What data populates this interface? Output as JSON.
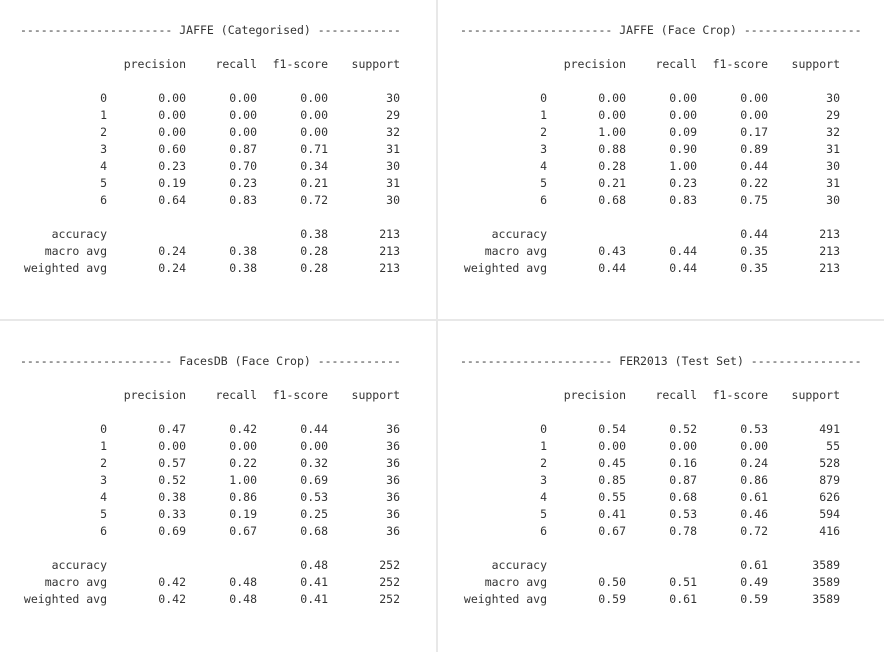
{
  "columns": [
    "precision",
    "recall",
    "f1-score",
    "support"
  ],
  "panels": [
    {
      "rule": "---------------------- JAFFE (Categorised) ------------",
      "rows": [
        {
          "label": "0",
          "precision": "0.00",
          "recall": "0.00",
          "f1": "0.00",
          "support": "30"
        },
        {
          "label": "1",
          "precision": "0.00",
          "recall": "0.00",
          "f1": "0.00",
          "support": "29"
        },
        {
          "label": "2",
          "precision": "0.00",
          "recall": "0.00",
          "f1": "0.00",
          "support": "32"
        },
        {
          "label": "3",
          "precision": "0.60",
          "recall": "0.87",
          "f1": "0.71",
          "support": "31"
        },
        {
          "label": "4",
          "precision": "0.23",
          "recall": "0.70",
          "f1": "0.34",
          "support": "30"
        },
        {
          "label": "5",
          "precision": "0.19",
          "recall": "0.23",
          "f1": "0.21",
          "support": "31"
        },
        {
          "label": "6",
          "precision": "0.64",
          "recall": "0.83",
          "f1": "0.72",
          "support": "30"
        }
      ],
      "accuracy": {
        "label": "accuracy",
        "f1": "0.38",
        "support": "213"
      },
      "macro": {
        "label": "macro avg",
        "precision": "0.24",
        "recall": "0.38",
        "f1": "0.28",
        "support": "213"
      },
      "weighted": {
        "label": "weighted avg",
        "precision": "0.24",
        "recall": "0.38",
        "f1": "0.28",
        "support": "213"
      }
    },
    {
      "rule": "---------------------- JAFFE (Face Crop) -----------------",
      "rows": [
        {
          "label": "0",
          "precision": "0.00",
          "recall": "0.00",
          "f1": "0.00",
          "support": "30"
        },
        {
          "label": "1",
          "precision": "0.00",
          "recall": "0.00",
          "f1": "0.00",
          "support": "29"
        },
        {
          "label": "2",
          "precision": "1.00",
          "recall": "0.09",
          "f1": "0.17",
          "support": "32"
        },
        {
          "label": "3",
          "precision": "0.88",
          "recall": "0.90",
          "f1": "0.89",
          "support": "31"
        },
        {
          "label": "4",
          "precision": "0.28",
          "recall": "1.00",
          "f1": "0.44",
          "support": "30"
        },
        {
          "label": "5",
          "precision": "0.21",
          "recall": "0.23",
          "f1": "0.22",
          "support": "31"
        },
        {
          "label": "6",
          "precision": "0.68",
          "recall": "0.83",
          "f1": "0.75",
          "support": "30"
        }
      ],
      "accuracy": {
        "label": "accuracy",
        "f1": "0.44",
        "support": "213"
      },
      "macro": {
        "label": "macro avg",
        "precision": "0.43",
        "recall": "0.44",
        "f1": "0.35",
        "support": "213"
      },
      "weighted": {
        "label": "weighted avg",
        "precision": "0.44",
        "recall": "0.44",
        "f1": "0.35",
        "support": "213"
      }
    },
    {
      "rule": "---------------------- FacesDB (Face Crop) ------------",
      "rows": [
        {
          "label": "0",
          "precision": "0.47",
          "recall": "0.42",
          "f1": "0.44",
          "support": "36"
        },
        {
          "label": "1",
          "precision": "0.00",
          "recall": "0.00",
          "f1": "0.00",
          "support": "36"
        },
        {
          "label": "2",
          "precision": "0.57",
          "recall": "0.22",
          "f1": "0.32",
          "support": "36"
        },
        {
          "label": "3",
          "precision": "0.52",
          "recall": "1.00",
          "f1": "0.69",
          "support": "36"
        },
        {
          "label": "4",
          "precision": "0.38",
          "recall": "0.86",
          "f1": "0.53",
          "support": "36"
        },
        {
          "label": "5",
          "precision": "0.33",
          "recall": "0.19",
          "f1": "0.25",
          "support": "36"
        },
        {
          "label": "6",
          "precision": "0.69",
          "recall": "0.67",
          "f1": "0.68",
          "support": "36"
        }
      ],
      "accuracy": {
        "label": "accuracy",
        "f1": "0.48",
        "support": "252"
      },
      "macro": {
        "label": "macro avg",
        "precision": "0.42",
        "recall": "0.48",
        "f1": "0.41",
        "support": "252"
      },
      "weighted": {
        "label": "weighted avg",
        "precision": "0.42",
        "recall": "0.48",
        "f1": "0.41",
        "support": "252"
      }
    },
    {
      "rule": "---------------------- FER2013 (Test Set) ----------------",
      "rows": [
        {
          "label": "0",
          "precision": "0.54",
          "recall": "0.52",
          "f1": "0.53",
          "support": "491"
        },
        {
          "label": "1",
          "precision": "0.00",
          "recall": "0.00",
          "f1": "0.00",
          "support": "55"
        },
        {
          "label": "2",
          "precision": "0.45",
          "recall": "0.16",
          "f1": "0.24",
          "support": "528"
        },
        {
          "label": "3",
          "precision": "0.85",
          "recall": "0.87",
          "f1": "0.86",
          "support": "879"
        },
        {
          "label": "4",
          "precision": "0.55",
          "recall": "0.68",
          "f1": "0.61",
          "support": "626"
        },
        {
          "label": "5",
          "precision": "0.41",
          "recall": "0.53",
          "f1": "0.46",
          "support": "594"
        },
        {
          "label": "6",
          "precision": "0.67",
          "recall": "0.78",
          "f1": "0.72",
          "support": "416"
        }
      ],
      "accuracy": {
        "label": "accuracy",
        "f1": "0.61",
        "support": "3589"
      },
      "macro": {
        "label": "macro avg",
        "precision": "0.50",
        "recall": "0.51",
        "f1": "0.49",
        "support": "3589"
      },
      "weighted": {
        "label": "weighted avg",
        "precision": "0.59",
        "recall": "0.61",
        "f1": "0.59",
        "support": "3589"
      }
    }
  ]
}
